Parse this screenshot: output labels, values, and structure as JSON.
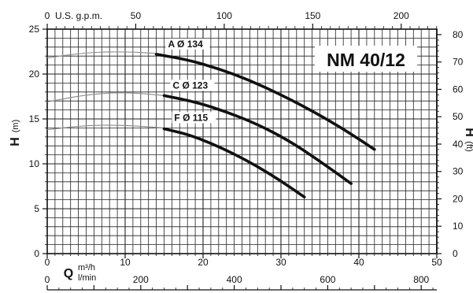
{
  "chart_data": {
    "type": "line",
    "title": "NM 40/12",
    "x_axis": {
      "label": "Q",
      "unit": "m³/h",
      "min": 0,
      "max": 50,
      "ticks": [
        0,
        10,
        20,
        30,
        40,
        50
      ]
    },
    "x_axis_secondary_bottom": {
      "unit": "l/min",
      "min": 0,
      "max": 833.3,
      "ticks": [
        0,
        200,
        400,
        600,
        800
      ]
    },
    "x_axis_top": {
      "unit": "U.S. g.p.m.",
      "min": 0,
      "max": 220.1,
      "ticks": [
        0,
        50,
        100,
        150,
        200
      ]
    },
    "y_axis_left": {
      "label": "H",
      "unit": "(m)",
      "min": 0,
      "max": 25,
      "ticks": [
        0,
        5,
        10,
        15,
        20,
        25
      ]
    },
    "y_axis_right": {
      "label": "H",
      "unit": "(ft)",
      "min": 0,
      "max": 82,
      "ticks": [
        0,
        10,
        20,
        30,
        40,
        50,
        60,
        70,
        80
      ]
    },
    "series": [
      {
        "name": "A Ø 134",
        "faint": [
          [
            0,
            21.8
          ],
          [
            5,
            22.4
          ],
          [
            10,
            22.5
          ],
          [
            14,
            22.3
          ]
        ],
        "bold": [
          [
            14,
            22.2
          ],
          [
            18,
            21.6
          ],
          [
            22,
            20.6
          ],
          [
            26,
            19.3
          ],
          [
            30,
            17.7
          ],
          [
            34,
            15.9
          ],
          [
            38,
            13.9
          ],
          [
            42,
            11.6
          ]
        ]
      },
      {
        "name": "C Ø 123",
        "faint": [
          [
            0,
            16.9
          ],
          [
            5,
            17.7
          ],
          [
            10,
            18.0
          ],
          [
            15,
            17.6
          ]
        ],
        "bold": [
          [
            15,
            17.6
          ],
          [
            19,
            16.9
          ],
          [
            23,
            15.8
          ],
          [
            27,
            14.4
          ],
          [
            31,
            12.6
          ],
          [
            35,
            10.3
          ],
          [
            39,
            7.8
          ]
        ]
      },
      {
        "name": "F Ø 115",
        "faint": [
          [
            0,
            13.8
          ],
          [
            5,
            14.3
          ],
          [
            10,
            14.3
          ],
          [
            15,
            14.0
          ]
        ],
        "bold": [
          [
            15,
            13.9
          ],
          [
            18,
            13.3
          ],
          [
            21,
            12.3
          ],
          [
            24,
            11.1
          ],
          [
            27,
            9.7
          ],
          [
            30,
            8.1
          ],
          [
            33,
            6.3
          ]
        ]
      }
    ],
    "grid": true,
    "legend": "inline-labels"
  }
}
